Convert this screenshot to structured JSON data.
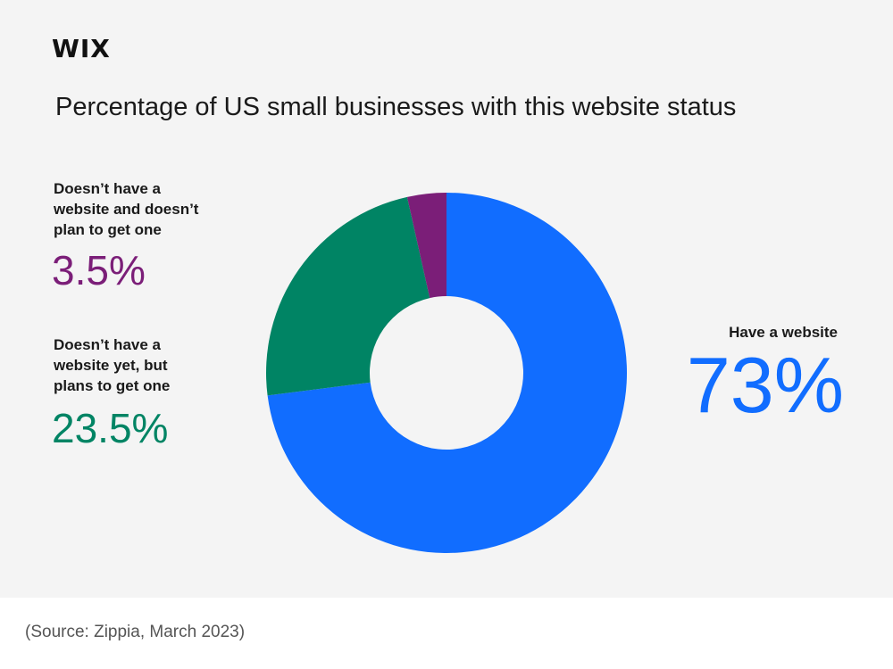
{
  "header": {
    "logo_text": "WIX",
    "title": "Percentage of US small businesses with this website status"
  },
  "chart_data": {
    "type": "pie",
    "title": "Percentage of US small businesses with this website status",
    "series": [
      {
        "name": "Have a website",
        "value": 73,
        "label": "73%",
        "color": "#116dff"
      },
      {
        "name": "Doesn’t have a website yet, but plans to get one",
        "value": 23.5,
        "label": "23.5%",
        "color": "#008464"
      },
      {
        "name": "Doesn’t have a website and doesn’t plan to get one",
        "value": 3.5,
        "label": "3.5%",
        "color": "#7b1e78"
      }
    ]
  },
  "labels": {
    "no_plan_line1": "Doesn’t have a",
    "no_plan_line2": "website and doesn’t",
    "no_plan_line3": "plan to get one",
    "plans_line1": "Doesn’t have a",
    "plans_line2": "website yet, but",
    "plans_line3": "plans to get one",
    "have": "Have a website"
  },
  "footer": {
    "source": "(Source: Zippia, March 2023)"
  }
}
